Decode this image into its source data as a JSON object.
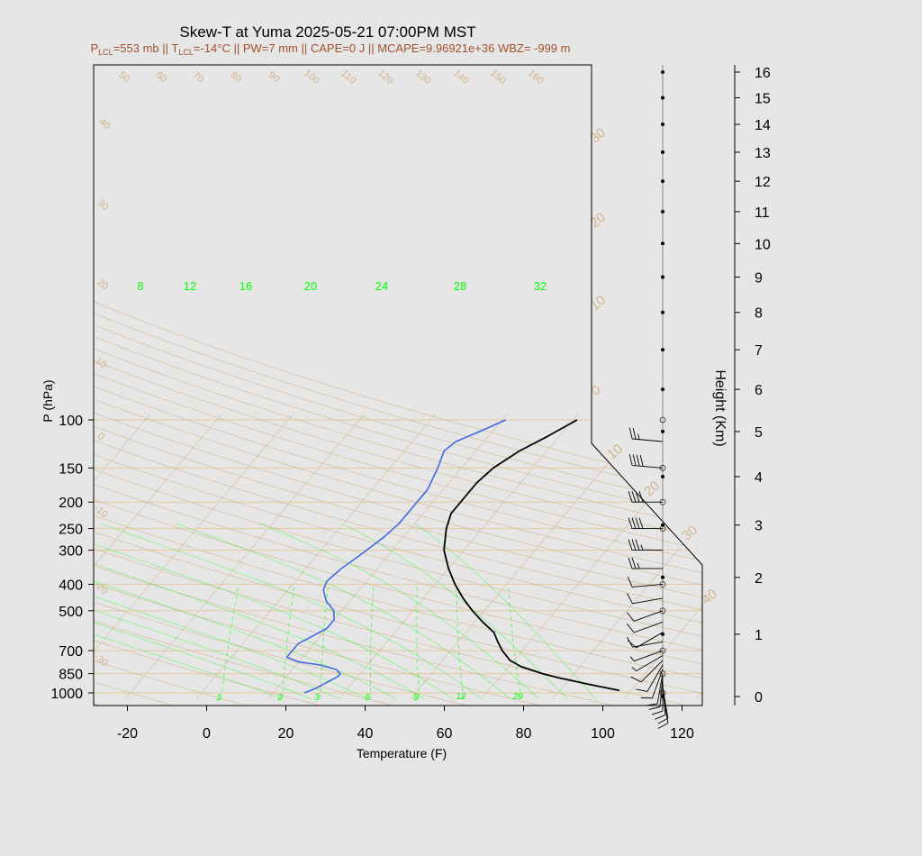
{
  "chart_data": {
    "type": "line",
    "title": "Skew-T at Yuma 2025-05-21 07:00PM MST",
    "subtitle": {
      "p_lcl": "553 mb",
      "t_lcl": "-14°C",
      "pw": "PW=7 mm",
      "cape": "CAPE=0 J",
      "mcape": "MCAPE=9.96921e+36",
      "wbz": "WBZ= -999 m",
      "sep": " || "
    },
    "xlabel": "Temperature (F)",
    "ylabel": "P (hPa)",
    "y2label": "Height (Km)",
    "x_ticks": [
      -20,
      0,
      20,
      40,
      60,
      80,
      100,
      120
    ],
    "y_ticks": [
      100,
      150,
      200,
      250,
      300,
      400,
      500,
      700,
      850,
      1000
    ],
    "height_ticks": [
      0,
      1,
      2,
      3,
      4,
      5,
      6,
      7,
      8,
      9,
      10,
      11,
      12,
      13,
      14,
      15,
      16
    ],
    "xlim": [
      -28,
      125
    ],
    "ylim": [
      1050,
      100
    ],
    "mixing_ratio_labels": [
      "1",
      "2",
      "3",
      "5",
      "8",
      "12",
      "20"
    ],
    "theta_e_labels": [
      "8",
      "12",
      "16",
      "20",
      "24",
      "28",
      "32"
    ],
    "isotherm_labels": [
      "30",
      "20",
      "10",
      "0",
      "10",
      "20",
      "30",
      "40"
    ],
    "dry_adiabat_labels": [
      "40",
      "30",
      "20",
      "10",
      "0",
      "-10",
      "-20",
      "-30",
      "50",
      "60",
      "70",
      "80",
      "90",
      "100",
      "110",
      "120",
      "130",
      "140",
      "150",
      "160"
    ],
    "series": [
      {
        "name": "temperature",
        "color": "#000000",
        "points": [
          [
            980,
            101
          ],
          [
            930,
            92
          ],
          [
            880,
            83
          ],
          [
            850,
            78
          ],
          [
            800,
            71
          ],
          [
            760,
            67
          ],
          [
            700,
            63
          ],
          [
            650,
            60
          ],
          [
            600,
            57
          ],
          [
            550,
            52
          ],
          [
            500,
            47
          ],
          [
            450,
            42
          ],
          [
            400,
            37
          ],
          [
            350,
            32
          ],
          [
            300,
            27
          ],
          [
            250,
            23
          ],
          [
            220,
            21
          ],
          [
            200,
            21
          ],
          [
            170,
            21
          ],
          [
            150,
            22
          ],
          [
            130,
            25
          ],
          [
            115,
            29
          ],
          [
            100,
            33
          ]
        ]
      },
      {
        "name": "dewpoint",
        "color": "#4169e1",
        "points": [
          [
            1000,
            22
          ],
          [
            960,
            24
          ],
          [
            900,
            26
          ],
          [
            870,
            27
          ],
          [
            850,
            27
          ],
          [
            820,
            25
          ],
          [
            790,
            20
          ],
          [
            770,
            14
          ],
          [
            740,
            10
          ],
          [
            700,
            10
          ],
          [
            660,
            10
          ],
          [
            620,
            12
          ],
          [
            580,
            14
          ],
          [
            540,
            14
          ],
          [
            500,
            12
          ],
          [
            460,
            8
          ],
          [
            420,
            5
          ],
          [
            390,
            4
          ],
          [
            350,
            5
          ],
          [
            310,
            7
          ],
          [
            270,
            9
          ],
          [
            240,
            10
          ],
          [
            210,
            10
          ],
          [
            180,
            10
          ],
          [
            150,
            8
          ],
          [
            130,
            6
          ],
          [
            120,
            7
          ],
          [
            110,
            11
          ],
          [
            100,
            15
          ]
        ]
      }
    ],
    "wind_barbs": [
      {
        "p": 1000,
        "dir": 170,
        "spd": 10
      },
      {
        "p": 960,
        "dir": 170,
        "spd": 10
      },
      {
        "p": 930,
        "dir": 175,
        "spd": 10
      },
      {
        "p": 900,
        "dir": 180,
        "spd": 10
      },
      {
        "p": 870,
        "dir": 185,
        "spd": 10
      },
      {
        "p": 850,
        "dir": 190,
        "spd": 10
      },
      {
        "p": 820,
        "dir": 200,
        "spd": 10
      },
      {
        "p": 790,
        "dir": 210,
        "spd": 10
      },
      {
        "p": 760,
        "dir": 225,
        "spd": 10
      },
      {
        "p": 730,
        "dir": 240,
        "spd": 5
      },
      {
        "p": 700,
        "dir": 250,
        "spd": 5
      },
      {
        "p": 650,
        "dir": 260,
        "spd": 10
      },
      {
        "p": 600,
        "dir": 240,
        "spd": 10
      },
      {
        "p": 550,
        "dir": 250,
        "spd": 10
      },
      {
        "p": 500,
        "dir": 250,
        "spd": 10
      },
      {
        "p": 450,
        "dir": 260,
        "spd": 10
      },
      {
        "p": 400,
        "dir": 265,
        "spd": 10
      },
      {
        "p": 350,
        "dir": 270,
        "spd": 25
      },
      {
        "p": 300,
        "dir": 270,
        "spd": 35
      },
      {
        "p": 250,
        "dir": 270,
        "spd": 40
      },
      {
        "p": 200,
        "dir": 270,
        "spd": 40
      },
      {
        "p": 150,
        "dir": 275,
        "spd": 40
      },
      {
        "p": 120,
        "dir": 275,
        "spd": 25
      }
    ],
    "grid": true,
    "colors": {
      "background": "#e6e6e6",
      "grid": "#d2b48c",
      "isobar": "#e6c8a0",
      "moist": "#00ff00",
      "subtitle": "#a0522d",
      "temperature": "#000000",
      "dewpoint": "#4169e1"
    }
  }
}
